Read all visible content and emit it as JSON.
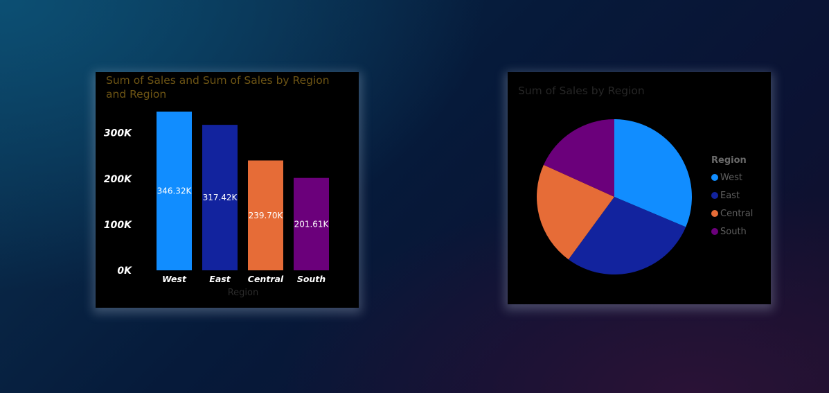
{
  "chart_data": [
    {
      "type": "bar",
      "title": "Sum of Sales and Sum of Sales by Region and Region",
      "xlabel": "Region",
      "ylabel": "",
      "categories": [
        "West",
        "East",
        "Central",
        "South"
      ],
      "values": [
        346320,
        317420,
        239700,
        201610
      ],
      "data_labels": [
        "346.32K",
        "317.42K",
        "239.70K",
        "201.61K"
      ],
      "colors": [
        "#118DFF",
        "#12239E",
        "#E66C37",
        "#6B007B"
      ],
      "ylim": [
        0,
        346320
      ],
      "yticks": [
        0,
        100000,
        200000,
        300000
      ],
      "ytick_labels": [
        "0K",
        "100K",
        "200K",
        "300K"
      ],
      "grid": false,
      "legend": "none"
    },
    {
      "type": "pie",
      "title": "Sum of Sales by Region",
      "categories": [
        "West",
        "East",
        "Central",
        "South"
      ],
      "values": [
        346320,
        317420,
        239700,
        201610
      ],
      "colors": [
        "#118DFF",
        "#12239E",
        "#E66C37",
        "#6B007B"
      ],
      "legend_title": "Region",
      "legend": "right"
    }
  ]
}
